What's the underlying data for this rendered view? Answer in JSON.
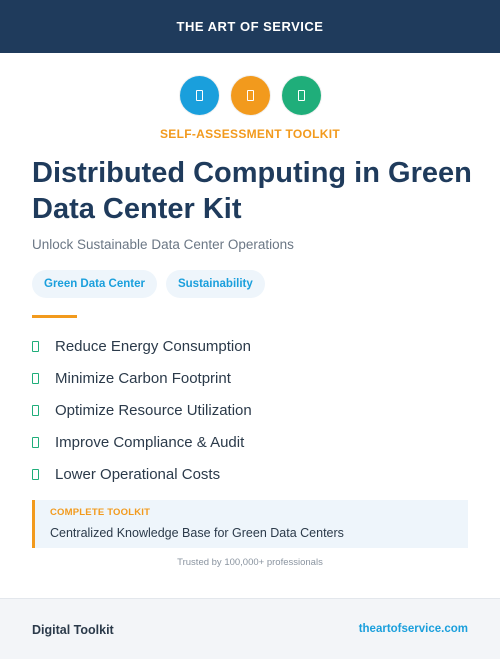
{
  "header": {
    "brand": "THE ART OF SERVICE",
    "color": "#1f3b5c"
  },
  "icons": [
    {
      "name": "document-icon",
      "color": "#1a9fdc"
    },
    {
      "name": "document-icon",
      "color": "#f29a1d"
    },
    {
      "name": "document-icon",
      "color": "#1fae7a"
    }
  ],
  "hero": {
    "kicker": "SELF-ASSESSMENT TOOLKIT",
    "title": "Distributed Computing in Green Data Center Kit",
    "subtitle": "Unlock Sustainable Data Center Operations"
  },
  "tags": [
    "Green Data Center",
    "Sustainability"
  ],
  "benefits": [
    "Reduce Energy Consumption",
    "Minimize Carbon Footprint",
    "Optimize Resource Utilization",
    "Improve Compliance & Audit",
    "Lower Operational Costs"
  ],
  "callout": {
    "kicker": "COMPLETE TOOLKIT",
    "text": "Centralized Knowledge Base for Green Data Centers"
  },
  "trusted": "Trusted by 100,000+ professionals",
  "footer": {
    "left": "Digital Toolkit",
    "right": "theartofservice.com"
  },
  "colors": {
    "accent_orange": "#f29a1d",
    "accent_blue": "#1a9fdc",
    "accent_green": "#1fae7a",
    "navy": "#1f3b5c"
  }
}
